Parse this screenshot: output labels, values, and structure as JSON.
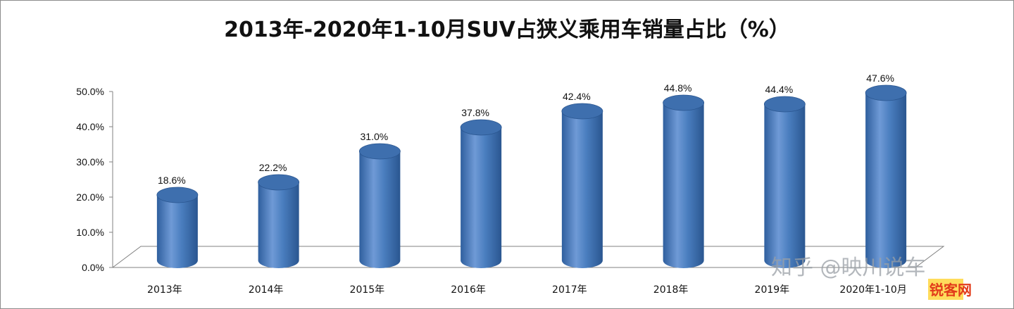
{
  "chart_data": {
    "type": "bar",
    "title": "2013年-2020年1-10月SUV占狭义乘用车销量占比（%）",
    "categories": [
      "2013年",
      "2014年",
      "2015年",
      "2016年",
      "2017年",
      "2018年",
      "2019年",
      "2020年1-10月"
    ],
    "series": [
      {
        "values": [
          18.6,
          22.2,
          31.0,
          37.8,
          42.4,
          44.8,
          44.4,
          47.6
        ]
      }
    ],
    "data_labels": [
      "18.6%",
      "22.2%",
      "31.0%",
      "37.8%",
      "42.4%",
      "44.8%",
      "44.4%",
      "47.6%"
    ],
    "y_ticks": [
      "0.0%",
      "10.0%",
      "20.0%",
      "30.0%",
      "40.0%",
      "50.0%"
    ],
    "ylim": [
      0,
      50
    ],
    "bar_shape": "3d-cylinder",
    "grid": false,
    "legend": "none",
    "colors": {
      "bar_light": "#6f9ad6",
      "bar_mid": "#4a7ebf",
      "bar_dark": "#2c5a96",
      "bar_top": "#3e6fae",
      "floor": "#ffffff",
      "axis": "#808080"
    }
  },
  "watermark": "知乎 @映川说车",
  "logo": "锐客网"
}
